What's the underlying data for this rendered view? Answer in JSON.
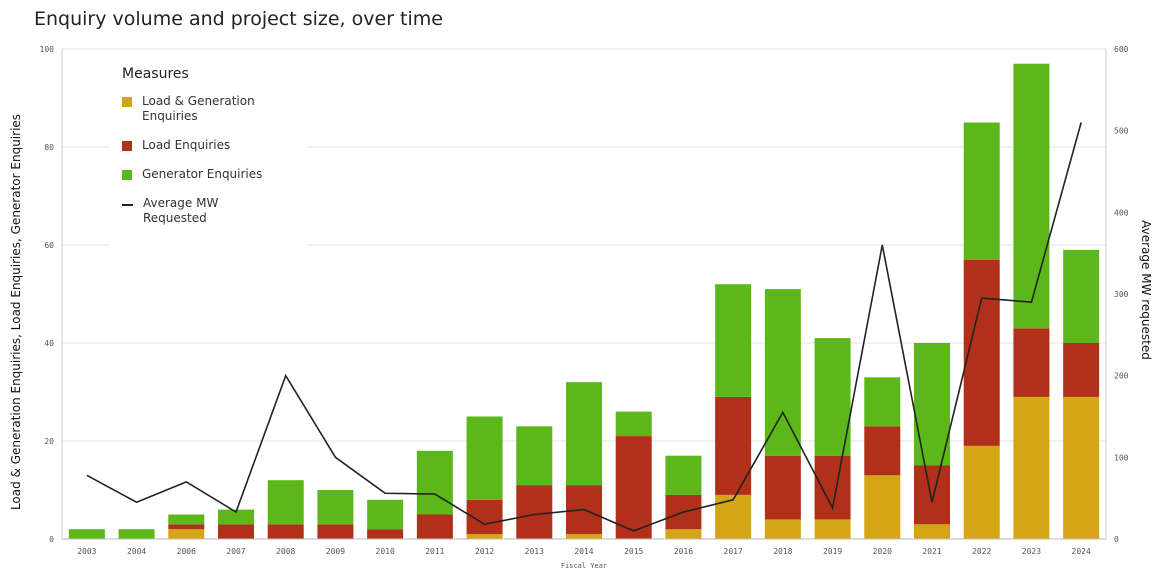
{
  "chart_data": {
    "type": "bar",
    "title": "Enquiry volume and project size, over time",
    "xlabel": "Fiscal Year",
    "ylabel": "Load & Generation Enquiries, Load Enquiries, Generator Enquiries",
    "y2label": "Average MW requested",
    "ylim": [
      0,
      100
    ],
    "y2lim": [
      0,
      600
    ],
    "yticks": [
      "0",
      "20",
      "40",
      "60",
      "80",
      "100"
    ],
    "y2ticks": [
      "0",
      "100",
      "200",
      "300",
      "400",
      "500",
      "600"
    ],
    "stacked": true,
    "grid": true,
    "categories": [
      "2003",
      "2004",
      "2006",
      "2007",
      "2008",
      "2009",
      "2010",
      "2011",
      "2012",
      "2013",
      "2014",
      "2015",
      "2016",
      "2017",
      "2018",
      "2019",
      "2020",
      "2021",
      "2022",
      "2023",
      "2024"
    ],
    "series": [
      {
        "name": "Load & Generation Enquiries",
        "color": "#d4a514",
        "values": [
          0,
          0,
          2,
          0,
          0,
          0,
          0,
          0,
          1,
          0,
          1,
          0,
          2,
          9,
          4,
          4,
          13,
          3,
          19,
          29,
          29
        ]
      },
      {
        "name": "Load Enquiries",
        "color": "#b0301a",
        "values": [
          0,
          0,
          1,
          3,
          3,
          3,
          2,
          5,
          7,
          11,
          10,
          21,
          7,
          20,
          13,
          13,
          10,
          12,
          38,
          14,
          11
        ]
      },
      {
        "name": "Generator Enquiries",
        "color": "#5cb81a",
        "values": [
          2,
          2,
          2,
          3,
          9,
          7,
          6,
          13,
          17,
          12,
          21,
          5,
          8,
          23,
          34,
          24,
          10,
          25,
          28,
          54,
          19
        ]
      }
    ],
    "line": {
      "name": "Average MW Requested",
      "axis": "right",
      "color": "#222222",
      "values": [
        78,
        45,
        70,
        33,
        200,
        100,
        56,
        55,
        18,
        30,
        36,
        10,
        33,
        48,
        155,
        38,
        360,
        45,
        295,
        290,
        510
      ]
    },
    "legend": {
      "title": "Measures",
      "position": "top-left"
    }
  }
}
